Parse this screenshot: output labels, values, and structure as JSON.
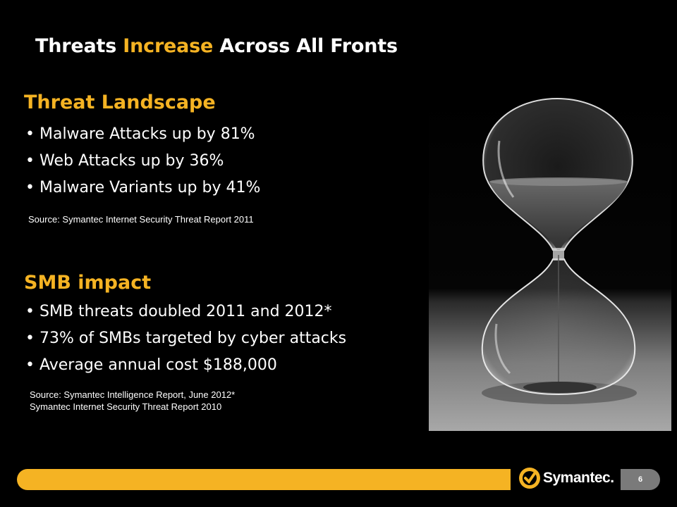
{
  "slide": {
    "title_part1": "Threats ",
    "title_accent": "Increase",
    "title_part2": " Across All Fronts",
    "accent_color": "#f5b323",
    "page_number": "6"
  },
  "threat_landscape": {
    "heading": "Threat Landscape",
    "bullets": [
      "Malware Attacks up by 81%",
      "Web Attacks up by 36%",
      "Malware Variants up by 41%"
    ],
    "source": "Source:  Symantec Internet Security Threat Report 2011"
  },
  "smb_impact": {
    "heading": "SMB impact",
    "bullets": [
      "SMB threats doubled 2011 and 2012*",
      "73% of SMBs targeted by cyber attacks",
      "Average annual cost $188,000"
    ],
    "source_line1": "Source:  Symantec  Intelligence Report, June 2012*",
    "source_line2": "Symantec Internet Security Threat Report 2010"
  },
  "footer": {
    "logo_text": "Symantec.",
    "logo_icon": "checkmark-icon"
  },
  "image": {
    "subject": "hourglass-photo"
  }
}
